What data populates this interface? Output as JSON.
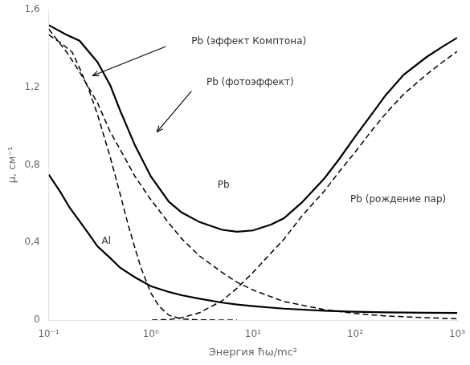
{
  "chart_data": {
    "type": "line",
    "log": "x",
    "grid": false,
    "xlabel": "Энергия ħω/mc²",
    "ylabel": "μ, см⁻¹",
    "xlim": [
      0.1,
      1000
    ],
    "ylim": [
      0,
      1.6
    ],
    "xticks": [
      {
        "value": 0.1,
        "label": "10⁻¹"
      },
      {
        "value": 1,
        "label": "10⁰"
      },
      {
        "value": 10,
        "label": "10¹"
      },
      {
        "value": 100,
        "label": "10²"
      },
      {
        "value": 1000,
        "label": "10³"
      }
    ],
    "yticks": [
      0,
      {
        "value": 0.4,
        "label": "0,4"
      },
      {
        "value": 0.8,
        "label": "0,8"
      },
      {
        "value": 1.2,
        "label": "1,2"
      },
      {
        "value": 1.6,
        "label": "1,6"
      }
    ],
    "series": [
      {
        "color": "#000000",
        "line_style": "solid",
        "x": [
          0.1,
          0.13,
          0.16,
          0.2,
          0.25,
          0.3,
          0.4,
          0.5,
          0.7,
          1.0,
          1.5,
          2.0,
          3.0,
          5.0,
          7.0,
          10.0,
          20.0,
          50.0,
          100.0,
          200.0,
          500.0,
          1000.0
        ],
        "values": [
          0.75,
          0.66,
          0.58,
          0.51,
          0.44,
          0.38,
          0.32,
          0.27,
          0.22,
          0.175,
          0.145,
          0.128,
          0.11,
          0.09,
          0.08,
          0.072,
          0.059,
          0.048,
          0.043,
          0.04,
          0.038,
          0.037
        ]
      },
      {
        "color": "#000000",
        "line_style": "solid",
        "x": [
          0.1,
          0.15,
          0.2,
          0.3,
          0.4,
          0.5,
          0.7,
          1.0,
          1.5,
          2.0,
          3.0,
          5.0,
          7.0,
          10.0,
          15.0,
          20.0,
          30.0,
          50.0,
          70.0,
          100.0,
          150.0,
          200.0,
          300.0,
          500.0,
          700.0,
          1000.0
        ],
        "values": [
          1.52,
          1.47,
          1.44,
          1.33,
          1.21,
          1.08,
          0.9,
          0.74,
          0.61,
          0.555,
          0.505,
          0.465,
          0.455,
          0.462,
          0.492,
          0.524,
          0.605,
          0.73,
          0.83,
          0.945,
          1.07,
          1.16,
          1.265,
          1.355,
          1.405,
          1.455
        ]
      },
      {
        "color": "#000000",
        "line_style": "dashed",
        "x": [
          0.1,
          0.15,
          0.2,
          0.3,
          0.4,
          0.5,
          0.7,
          1.0,
          1.5,
          2.0,
          3.0,
          5.0,
          7.0,
          10.0,
          20.0,
          50.0,
          100.0,
          200.0,
          500.0,
          1000.0
        ],
        "values": [
          1.5,
          1.38,
          1.28,
          1.12,
          0.97,
          0.88,
          0.74,
          0.62,
          0.5,
          0.42,
          0.33,
          0.245,
          0.195,
          0.155,
          0.096,
          0.054,
          0.034,
          0.021,
          0.012,
          0.007
        ]
      },
      {
        "color": "#000000",
        "line_style": "dashed",
        "x": [
          0.1,
          0.13,
          0.17,
          0.2,
          0.25,
          0.3,
          0.4,
          0.5,
          0.6,
          0.7,
          0.8,
          1.0,
          1.2,
          1.5,
          2.0,
          3.0,
          5.0,
          7.0
        ],
        "values": [
          1.47,
          1.43,
          1.38,
          1.3,
          1.18,
          1.06,
          0.84,
          0.65,
          0.49,
          0.37,
          0.27,
          0.14,
          0.072,
          0.025,
          0.006,
          0.001,
          0.00015,
          5e-05
        ]
      },
      {
        "color": "#000000",
        "line_style": "dashed",
        "x": [
          1.022,
          1.5,
          2.0,
          3.0,
          5.0,
          7.0,
          10.0,
          15.0,
          20.0,
          30.0,
          50.0,
          70.0,
          100.0,
          150.0,
          200.0,
          300.0,
          500.0,
          700.0,
          1000.0
        ],
        "values": [
          0.0,
          0.003,
          0.012,
          0.038,
          0.1,
          0.165,
          0.245,
          0.345,
          0.415,
          0.535,
          0.665,
          0.765,
          0.865,
          0.985,
          1.065,
          1.165,
          1.265,
          1.325,
          1.385
        ]
      }
    ],
    "annotations": [
      {
        "text": "Pb (эффект Комптона)",
        "x": 2.5,
        "y": 1.41
      },
      {
        "text": "Pb (фотоэффект)",
        "x": 3.5,
        "y": 1.2
      },
      {
        "text": "Pb",
        "x": 4.5,
        "y": 0.67
      },
      {
        "text": "Al",
        "x": 0.33,
        "y": 0.38
      },
      {
        "text": "Pb (рождение пар)",
        "x": 90,
        "y": 0.595
      }
    ],
    "arrows": [
      {
        "from": [
          1.4,
          1.41
        ],
        "to": [
          0.27,
          1.26
        ]
      },
      {
        "from": [
          2.5,
          1.18
        ],
        "to": [
          1.15,
          0.97
        ]
      }
    ]
  }
}
